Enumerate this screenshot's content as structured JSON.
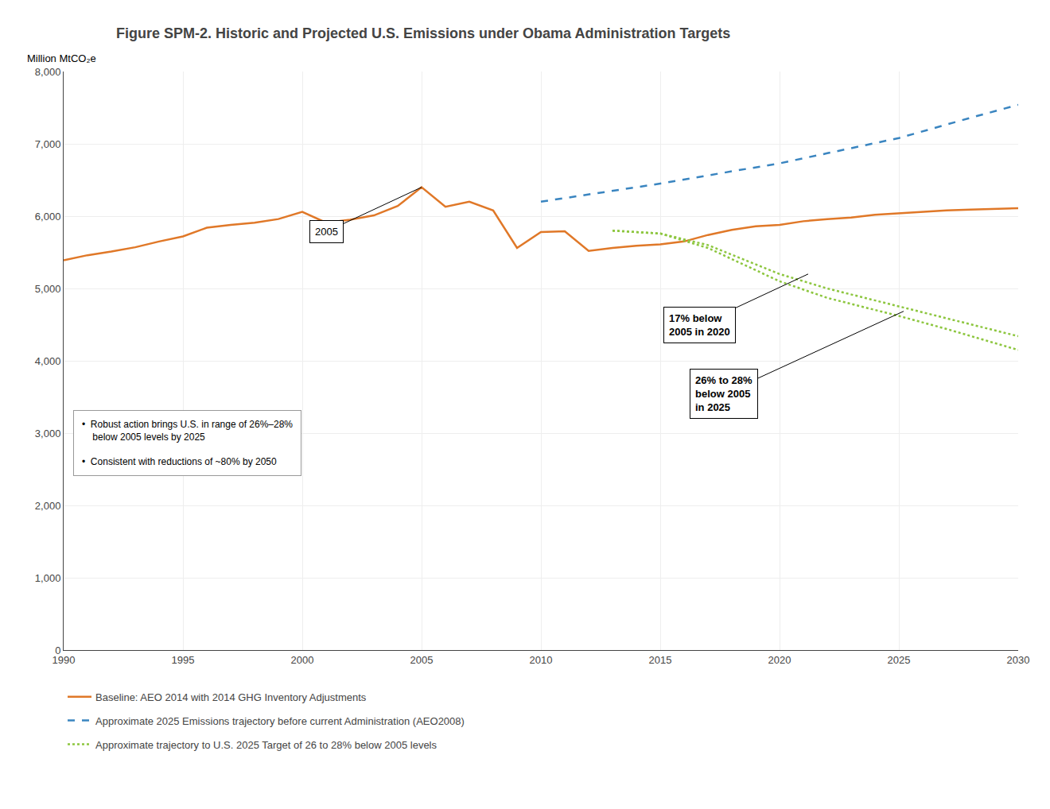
{
  "chart_data": {
    "type": "line",
    "title": "Figure SPM-2. Historic and Projected U.S. Emissions under Obama Administration Targets",
    "ylabel": "Million MtCO₂e",
    "xlim": [
      1990,
      2030
    ],
    "ylim": [
      0,
      8000
    ],
    "xticks": [
      1990,
      1995,
      2000,
      2005,
      2010,
      2015,
      2020,
      2025,
      2030
    ],
    "yticks": [
      0,
      {
        "value": 1000,
        "label": "1,000"
      },
      {
        "value": 2000,
        "label": "2,000"
      },
      {
        "value": 3000,
        "label": "3,000"
      },
      {
        "value": 4000,
        "label": "4,000"
      },
      {
        "value": 5000,
        "label": "5,000"
      },
      {
        "value": 6000,
        "label": "6,000"
      },
      {
        "value": 7000,
        "label": "7,000"
      },
      {
        "value": 8000,
        "label": "8,000"
      }
    ],
    "grid": true,
    "legend": "bottom",
    "series": [
      {
        "name": "Baseline: AEO 2014 with 2014 GHG Inventory Adjustments",
        "color": "#e07828",
        "line_style": "solid",
        "x": [
          1990,
          1991,
          1992,
          1993,
          1994,
          1995,
          1996,
          1997,
          1998,
          1999,
          2000,
          2001,
          2002,
          2003,
          2004,
          2005,
          2006,
          2007,
          2008,
          2009,
          2010,
          2011,
          2012,
          2013,
          2014,
          2015,
          2016,
          2017,
          2018,
          2019,
          2020,
          2021,
          2022,
          2023,
          2024,
          2025,
          2026,
          2027,
          2028,
          2029,
          2030
        ],
        "values": [
          5390,
          5460,
          5510,
          5570,
          5650,
          5720,
          5840,
          5880,
          5910,
          5960,
          6060,
          5910,
          5950,
          6010,
          6140,
          6400,
          6130,
          6200,
          6080,
          5560,
          5780,
          5790,
          5520,
          5560,
          5590,
          5610,
          5650,
          5740,
          5810,
          5860,
          5880,
          5930,
          5960,
          5980,
          6020,
          6040,
          6060,
          6080,
          6090,
          6100,
          6110
        ]
      },
      {
        "name": "Approximate 2025 Emissions trajectory before current Administration (AEO2008)",
        "color": "#3a85c0",
        "line_style": "dashed",
        "x": [
          2010,
          2012,
          2015,
          2018,
          2020,
          2022,
          2025,
          2028,
          2030
        ],
        "values": [
          6200,
          6300,
          6450,
          6620,
          6730,
          6870,
          7080,
          7360,
          7540
        ]
      },
      {
        "name": "Approximate trajectory to U.S. 2025 Target of 26 to 28% below 2005 levels",
        "color": "#8dc63f",
        "line_style": "dotted",
        "x": [
          2013,
          2015,
          2017,
          2020,
          2022,
          2025,
          2027,
          2030
        ],
        "values": [
          5800,
          5760,
          5600,
          5200,
          5000,
          4750,
          4590,
          4340
        ]
      },
      {
        "name": "Approximate trajectory to U.S. 2025 Target of 26 to 28% below 2005 levels",
        "color": "#8dc63f",
        "line_style": "dotted",
        "x": [
          2013,
          2015,
          2017,
          2020,
          2022,
          2025,
          2027,
          2030
        ],
        "values": [
          5800,
          5760,
          5560,
          5100,
          4870,
          4620,
          4440,
          4150
        ]
      }
    ],
    "annotations": [
      {
        "text": "2005",
        "x": 2005,
        "y": 6400
      },
      {
        "text": "17% below\n2005 in 2020",
        "x": 2021.2,
        "y": 5200
      },
      {
        "text": "26% to 28%\nbelow 2005\nin 2025",
        "x": 2025.2,
        "y": 4685
      },
      {
        "text": "•  Robust action brings U.S. in range of 26%–28%\n    below 2005 levels by 2025\n\n•  Consistent with reductions of ~80% by 2050"
      }
    ]
  }
}
